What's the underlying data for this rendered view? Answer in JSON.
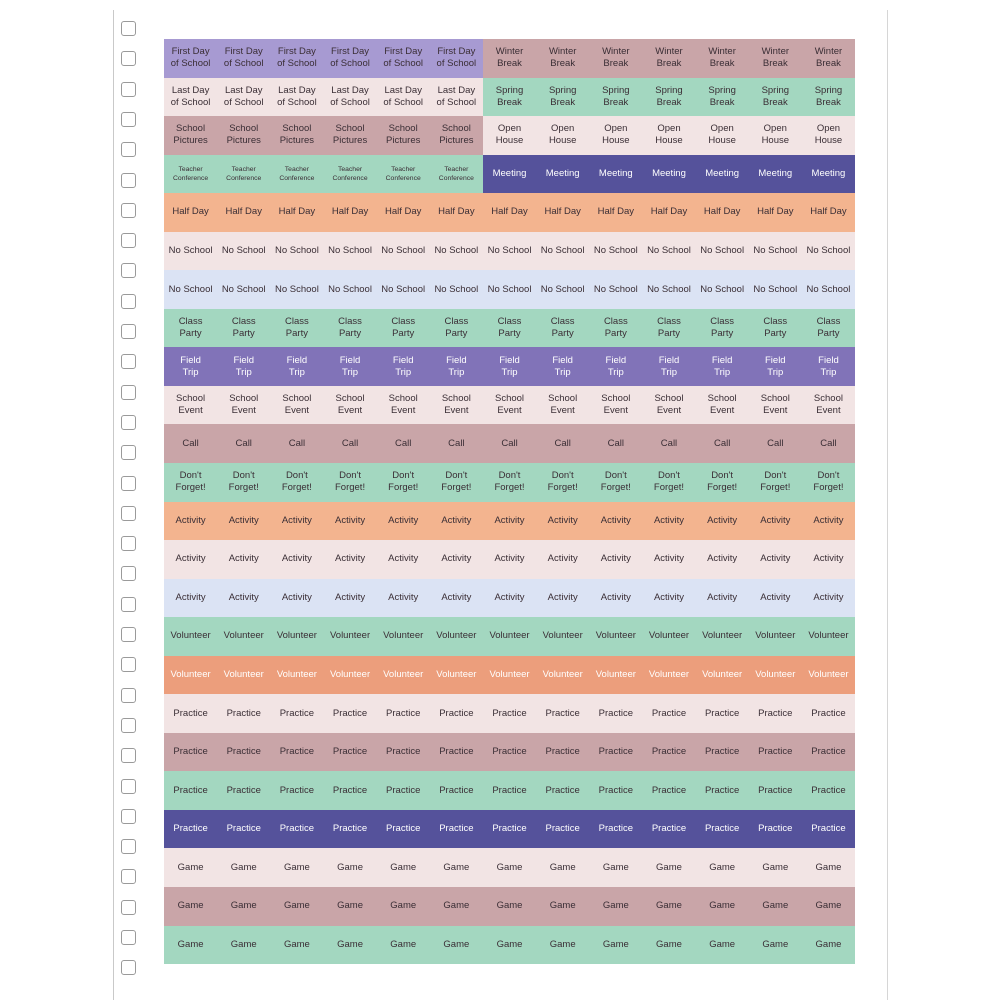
{
  "colors": {
    "lavender": "#a79ad2",
    "rose": "#c9a5a8",
    "blush": "#f2e4e4",
    "mint": "#a3d7c0",
    "peach": "#f3b48f",
    "powder": "#dbe3f4",
    "purple": "#8173b8",
    "indigo": "#55529b",
    "coral": "#ec9e7c"
  },
  "rows": [
    {
      "segments": [
        {
          "label": "First Day\nof School",
          "count": 6,
          "color": "lavender"
        },
        {
          "label": "Winter\nBreak",
          "count": 7,
          "color": "rose"
        }
      ]
    },
    {
      "segments": [
        {
          "label": "Last Day\nof School",
          "count": 6,
          "color": "blush"
        },
        {
          "label": "Spring\nBreak",
          "count": 7,
          "color": "mint"
        }
      ]
    },
    {
      "segments": [
        {
          "label": "School\nPictures",
          "count": 6,
          "color": "rose"
        },
        {
          "label": "Open\nHouse",
          "count": 7,
          "color": "blush"
        }
      ]
    },
    {
      "segments": [
        {
          "label": "Teacher\nConference",
          "count": 6,
          "color": "mint",
          "small": true
        },
        {
          "label": "Meeting",
          "count": 7,
          "color": "indigo",
          "light": true
        }
      ]
    },
    {
      "segments": [
        {
          "label": "Half Day",
          "count": 13,
          "color": "peach"
        }
      ]
    },
    {
      "segments": [
        {
          "label": "No School",
          "count": 13,
          "color": "blush"
        }
      ]
    },
    {
      "segments": [
        {
          "label": "No School",
          "count": 13,
          "color": "powder"
        }
      ]
    },
    {
      "segments": [
        {
          "label": "Class\nParty",
          "count": 13,
          "color": "mint"
        }
      ]
    },
    {
      "segments": [
        {
          "label": "Field\nTrip",
          "count": 13,
          "color": "purple",
          "light": true
        }
      ]
    },
    {
      "segments": [
        {
          "label": "School\nEvent",
          "count": 13,
          "color": "blush"
        }
      ]
    },
    {
      "segments": [
        {
          "label": "Call",
          "count": 13,
          "color": "rose"
        }
      ]
    },
    {
      "segments": [
        {
          "label": "Don't\nForget!",
          "count": 13,
          "color": "mint"
        }
      ]
    },
    {
      "segments": [
        {
          "label": "Activity",
          "count": 13,
          "color": "peach"
        }
      ]
    },
    {
      "segments": [
        {
          "label": "Activity",
          "count": 13,
          "color": "blush"
        }
      ]
    },
    {
      "segments": [
        {
          "label": "Activity",
          "count": 13,
          "color": "powder"
        }
      ]
    },
    {
      "segments": [
        {
          "label": "Volunteer",
          "count": 13,
          "color": "mint"
        }
      ]
    },
    {
      "segments": [
        {
          "label": "Volunteer",
          "count": 13,
          "color": "coral",
          "light": true
        }
      ]
    },
    {
      "segments": [
        {
          "label": "Practice",
          "count": 13,
          "color": "blush"
        }
      ]
    },
    {
      "segments": [
        {
          "label": "Practice",
          "count": 13,
          "color": "rose"
        }
      ]
    },
    {
      "segments": [
        {
          "label": "Practice",
          "count": 13,
          "color": "mint"
        }
      ]
    },
    {
      "segments": [
        {
          "label": "Practice",
          "count": 13,
          "color": "indigo",
          "light": true
        }
      ]
    },
    {
      "segments": [
        {
          "label": "Game",
          "count": 13,
          "color": "blush"
        }
      ]
    },
    {
      "segments": [
        {
          "label": "Game",
          "count": 13,
          "color": "rose"
        }
      ]
    },
    {
      "segments": [
        {
          "label": "Game",
          "count": 13,
          "color": "mint"
        }
      ]
    }
  ],
  "binding_holes": 32
}
